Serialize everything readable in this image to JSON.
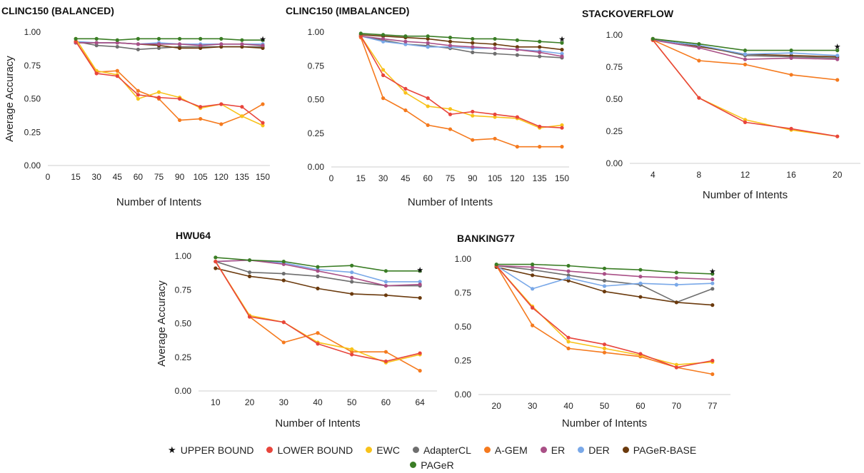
{
  "colors": {
    "UPPER BOUND": "#111111",
    "LOWER BOUND": "#e8453c",
    "EWC": "#f8c21a",
    "AdapterCL": "#6e6e6e",
    "A-GEM": "#f57a1e",
    "ER": "#a94f86",
    "DER": "#79a8e8",
    "PAGeR-BASE": "#6b3a0d",
    "PAGeR": "#3a7d25"
  },
  "legend": {
    "items": [
      "UPPER BOUND",
      "LOWER BOUND",
      "EWC",
      "AdapterCL",
      "A-GEM",
      "ER",
      "DER",
      "PAGeR-BASE",
      "PAGeR"
    ]
  },
  "chart_data": [
    {
      "type": "line",
      "title": "CLINC150 (BALANCED)",
      "xlabel": "Number of Intents",
      "ylabel": "Average Accuracy",
      "xticks": [
        "0",
        "15",
        "30",
        "45",
        "60",
        "75",
        "90",
        "105",
        "120",
        "135",
        "150"
      ],
      "yticks": [
        "0.00",
        "0.25",
        "0.50",
        "0.75",
        "1.00"
      ],
      "ylim": [
        0,
        1
      ],
      "x": [
        15,
        30,
        45,
        60,
        75,
        90,
        105,
        120,
        135,
        150
      ],
      "series": [
        {
          "name": "UPPER BOUND",
          "points": [
            [
              150,
              0.95
            ]
          ]
        },
        {
          "name": "LOWER BOUND",
          "values": [
            0.93,
            0.69,
            0.67,
            0.53,
            0.51,
            0.5,
            0.44,
            0.46,
            0.44,
            0.32
          ]
        },
        {
          "name": "EWC",
          "values": [
            0.95,
            0.71,
            0.68,
            0.5,
            0.55,
            0.51,
            0.43,
            0.46,
            0.37,
            0.3
          ]
        },
        {
          "name": "A-GEM",
          "values": [
            0.93,
            0.7,
            0.71,
            0.56,
            0.5,
            0.34,
            0.35,
            0.31,
            0.37,
            0.46
          ]
        },
        {
          "name": "AdapterCL",
          "values": [
            0.93,
            0.9,
            0.89,
            0.87,
            0.88,
            0.89,
            0.89,
            0.89,
            0.89,
            0.89
          ]
        },
        {
          "name": "ER",
          "values": [
            0.92,
            0.92,
            0.92,
            0.91,
            0.91,
            0.91,
            0.9,
            0.91,
            0.91,
            0.9
          ]
        },
        {
          "name": "DER",
          "values": [
            0.93,
            0.92,
            0.92,
            0.91,
            0.92,
            0.91,
            0.91,
            0.91,
            0.91,
            0.91
          ]
        },
        {
          "name": "PAGeR-BASE",
          "values": [
            0.92,
            0.92,
            0.92,
            0.91,
            0.9,
            0.88,
            0.88,
            0.89,
            0.89,
            0.88
          ]
        },
        {
          "name": "PAGeR",
          "values": [
            0.95,
            0.95,
            0.94,
            0.95,
            0.95,
            0.95,
            0.95,
            0.95,
            0.94,
            0.94
          ]
        }
      ]
    },
    {
      "type": "line",
      "title": "CLINC150 (IMBALANCED)",
      "xlabel": "Number of Intents",
      "ylabel": "",
      "xticks": [
        "0",
        "15",
        "30",
        "45",
        "60",
        "75",
        "90",
        "105",
        "120",
        "135",
        "150"
      ],
      "yticks": [
        "0.00",
        "0.25",
        "0.50",
        "0.75",
        "1.00"
      ],
      "ylim": [
        0,
        1
      ],
      "x": [
        15,
        30,
        45,
        60,
        75,
        90,
        105,
        120,
        135,
        150
      ],
      "series": [
        {
          "name": "UPPER BOUND",
          "points": [
            [
              150,
              0.95
            ]
          ]
        },
        {
          "name": "LOWER BOUND",
          "values": [
            0.97,
            0.68,
            0.58,
            0.51,
            0.39,
            0.41,
            0.39,
            0.37,
            0.3,
            0.29
          ]
        },
        {
          "name": "EWC",
          "values": [
            0.97,
            0.72,
            0.55,
            0.45,
            0.43,
            0.38,
            0.37,
            0.36,
            0.29,
            0.31
          ]
        },
        {
          "name": "A-GEM",
          "values": [
            0.96,
            0.51,
            0.42,
            0.31,
            0.28,
            0.2,
            0.21,
            0.15,
            0.15,
            0.15
          ]
        },
        {
          "name": "AdapterCL",
          "values": [
            0.97,
            0.94,
            0.91,
            0.9,
            0.88,
            0.85,
            0.84,
            0.83,
            0.82,
            0.81
          ]
        },
        {
          "name": "ER",
          "values": [
            0.97,
            0.95,
            0.93,
            0.92,
            0.9,
            0.89,
            0.88,
            0.87,
            0.85,
            0.82
          ]
        },
        {
          "name": "DER",
          "values": [
            0.97,
            0.93,
            0.91,
            0.89,
            0.89,
            0.88,
            0.88,
            0.87,
            0.86,
            0.84
          ]
        },
        {
          "name": "PAGeR-BASE",
          "values": [
            0.98,
            0.97,
            0.96,
            0.95,
            0.93,
            0.92,
            0.91,
            0.89,
            0.89,
            0.87
          ]
        },
        {
          "name": "PAGeR",
          "values": [
            0.99,
            0.98,
            0.97,
            0.97,
            0.96,
            0.95,
            0.95,
            0.94,
            0.93,
            0.92
          ]
        }
      ]
    },
    {
      "type": "line",
      "title": "STACKOVERFLOW",
      "xlabel": "Number of Intents",
      "ylabel": "",
      "xticks": [
        "4",
        "8",
        "12",
        "16",
        "20"
      ],
      "yticks": [
        "0.00",
        "0.25",
        "0.50",
        "0.75",
        "1.00"
      ],
      "ylim": [
        0,
        1
      ],
      "x": [
        4,
        8,
        12,
        16,
        20
      ],
      "series": [
        {
          "name": "UPPER BOUND",
          "points": [
            [
              20,
              0.91
            ]
          ]
        },
        {
          "name": "LOWER BOUND",
          "values": [
            0.96,
            0.51,
            0.32,
            0.27,
            0.21
          ]
        },
        {
          "name": "EWC",
          "values": [
            0.96,
            0.51,
            0.34,
            0.26,
            0.21
          ]
        },
        {
          "name": "A-GEM",
          "values": [
            0.96,
            0.8,
            0.77,
            0.69,
            0.65
          ]
        },
        {
          "name": "AdapterCL",
          "values": [
            0.96,
            0.92,
            0.84,
            0.83,
            0.82
          ]
        },
        {
          "name": "ER",
          "values": [
            0.96,
            0.9,
            0.81,
            0.82,
            0.81
          ]
        },
        {
          "name": "DER",
          "values": [
            0.96,
            0.92,
            0.85,
            0.86,
            0.84
          ]
        },
        {
          "name": "PAGeR-BASE",
          "values": [
            0.97,
            0.91,
            0.85,
            0.84,
            0.83
          ]
        },
        {
          "name": "PAGeR",
          "values": [
            0.97,
            0.93,
            0.88,
            0.88,
            0.88
          ]
        }
      ]
    },
    {
      "type": "line",
      "title": "HWU64",
      "xlabel": "Number of Intents",
      "ylabel": "Average Accuracy",
      "xticks": [
        "10",
        "20",
        "30",
        "40",
        "50",
        "60",
        "64"
      ],
      "yticks": [
        "0.00",
        "0.25",
        "0.50",
        "0.75",
        "1.00"
      ],
      "ylim": [
        0,
        1
      ],
      "x": [
        10,
        20,
        30,
        40,
        50,
        60,
        64
      ],
      "series": [
        {
          "name": "UPPER BOUND",
          "points": [
            [
              64,
              0.9
            ]
          ]
        },
        {
          "name": "LOWER BOUND",
          "values": [
            0.96,
            0.55,
            0.51,
            0.35,
            0.27,
            0.22,
            0.28
          ]
        },
        {
          "name": "EWC",
          "values": [
            0.96,
            0.56,
            0.51,
            0.36,
            0.31,
            0.21,
            0.27
          ]
        },
        {
          "name": "A-GEM",
          "values": [
            0.96,
            0.55,
            0.36,
            0.43,
            0.29,
            0.29,
            0.15
          ]
        },
        {
          "name": "AdapterCL",
          "values": [
            0.96,
            0.88,
            0.87,
            0.85,
            0.81,
            0.78,
            0.78
          ]
        },
        {
          "name": "ER",
          "values": [
            0.96,
            0.97,
            0.94,
            0.89,
            0.84,
            0.78,
            0.79
          ]
        },
        {
          "name": "DER",
          "values": [
            0.96,
            0.97,
            0.95,
            0.9,
            0.88,
            0.81,
            0.81
          ]
        },
        {
          "name": "PAGeR-BASE",
          "values": [
            0.91,
            0.85,
            0.82,
            0.76,
            0.72,
            0.71,
            0.69
          ]
        },
        {
          "name": "PAGeR",
          "values": [
            0.99,
            0.97,
            0.96,
            0.92,
            0.93,
            0.89,
            0.89
          ]
        }
      ]
    },
    {
      "type": "line",
      "title": "BANKING77",
      "xlabel": "Number of Intents",
      "ylabel": "",
      "xticks": [
        "20",
        "30",
        "40",
        "50",
        "60",
        "70",
        "77"
      ],
      "yticks": [
        "0.00",
        "0.25",
        "0.50",
        "0.75",
        "1.00"
      ],
      "ylim": [
        0,
        1
      ],
      "x": [
        20,
        30,
        40,
        50,
        60,
        70,
        77
      ],
      "series": [
        {
          "name": "UPPER BOUND",
          "points": [
            [
              77,
              0.91
            ]
          ]
        },
        {
          "name": "LOWER BOUND",
          "values": [
            0.95,
            0.64,
            0.42,
            0.37,
            0.3,
            0.2,
            0.25
          ]
        },
        {
          "name": "EWC",
          "values": [
            0.95,
            0.65,
            0.39,
            0.34,
            0.29,
            0.22,
            0.24
          ]
        },
        {
          "name": "A-GEM",
          "values": [
            0.95,
            0.51,
            0.34,
            0.31,
            0.28,
            0.2,
            0.15
          ]
        },
        {
          "name": "AdapterCL",
          "values": [
            0.95,
            0.92,
            0.88,
            0.84,
            0.81,
            0.68,
            0.78
          ]
        },
        {
          "name": "ER",
          "values": [
            0.95,
            0.94,
            0.91,
            0.89,
            0.87,
            0.86,
            0.85
          ]
        },
        {
          "name": "DER",
          "values": [
            0.95,
            0.78,
            0.86,
            0.8,
            0.82,
            0.81,
            0.82
          ]
        },
        {
          "name": "PAGeR-BASE",
          "values": [
            0.94,
            0.88,
            0.84,
            0.76,
            0.72,
            0.68,
            0.66
          ]
        },
        {
          "name": "PAGeR",
          "values": [
            0.96,
            0.96,
            0.95,
            0.93,
            0.92,
            0.9,
            0.89
          ]
        }
      ]
    }
  ]
}
